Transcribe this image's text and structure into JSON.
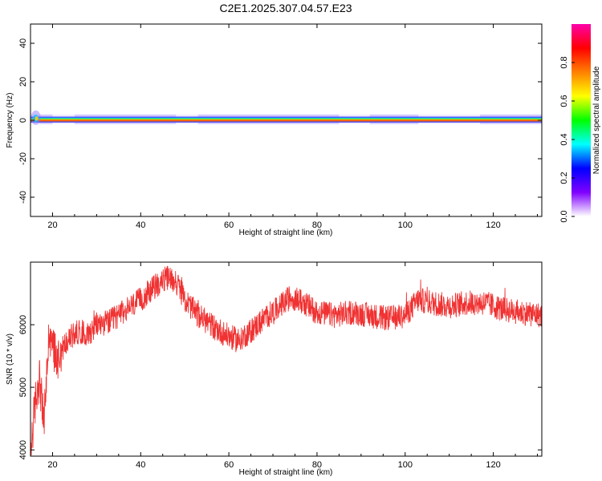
{
  "title": "C2E1.2025.307.04.57.E23",
  "chart_data": [
    {
      "type": "heatmap",
      "xlabel": "Height of straight line (km)",
      "ylabel": "Frequency (Hz)",
      "xlim": [
        15,
        131
      ],
      "ylim": [
        -50,
        50
      ],
      "xticks": [
        20,
        40,
        60,
        80,
        100,
        120
      ],
      "yticks": [
        -40,
        -20,
        0,
        20,
        40
      ],
      "ridge": {
        "frequency": 0.5,
        "x_start": 15,
        "x_end": 131,
        "bright_segments": [
          [
            17,
            20
          ],
          [
            25,
            48
          ],
          [
            53,
            85
          ],
          [
            92,
            103
          ],
          [
            117,
            131
          ]
        ]
      },
      "colorbar": {
        "label": "Normalized spectral amplitude",
        "range": [
          0,
          1
        ],
        "ticks": [
          "0.0",
          "0.2",
          "0.4",
          "0.6",
          "0.8"
        ],
        "colors": [
          "#ffffff",
          "#8000ff",
          "#0000ff",
          "#00ffff",
          "#00ff00",
          "#ffff00",
          "#ff8000",
          "#ff0000",
          "#ff00aa"
        ]
      }
    },
    {
      "type": "line",
      "xlabel": "Height of straight line (km)",
      "ylabel": "SNR (10 * v/v)",
      "xlim": [
        15,
        131
      ],
      "ylim": [
        3900,
        7000
      ],
      "xticks": [
        20,
        40,
        60,
        80,
        100,
        120
      ],
      "yticks": [
        4000,
        5000,
        6000
      ],
      "color": "#f03232",
      "series_x": [
        15,
        16,
        17,
        18,
        19,
        20,
        21,
        22,
        24,
        26,
        28,
        30,
        33,
        36,
        40,
        43,
        46,
        48,
        50,
        53,
        56,
        59,
        62,
        65,
        68,
        71,
        74,
        77,
        80,
        84,
        88,
        92,
        96,
        100,
        103,
        106,
        110,
        114,
        118,
        122,
        126,
        131
      ],
      "series_y": [
        3950,
        4700,
        5200,
        4400,
        5600,
        5700,
        5450,
        5600,
        5800,
        5900,
        5850,
        6000,
        6050,
        6200,
        6400,
        6600,
        6750,
        6700,
        6400,
        6150,
        6000,
        5850,
        5750,
        5900,
        6100,
        6250,
        6450,
        6350,
        6200,
        6150,
        6200,
        6150,
        6100,
        6150,
        6400,
        6350,
        6300,
        6350,
        6350,
        6250,
        6200,
        6150
      ],
      "noise_amplitude": 200
    }
  ]
}
